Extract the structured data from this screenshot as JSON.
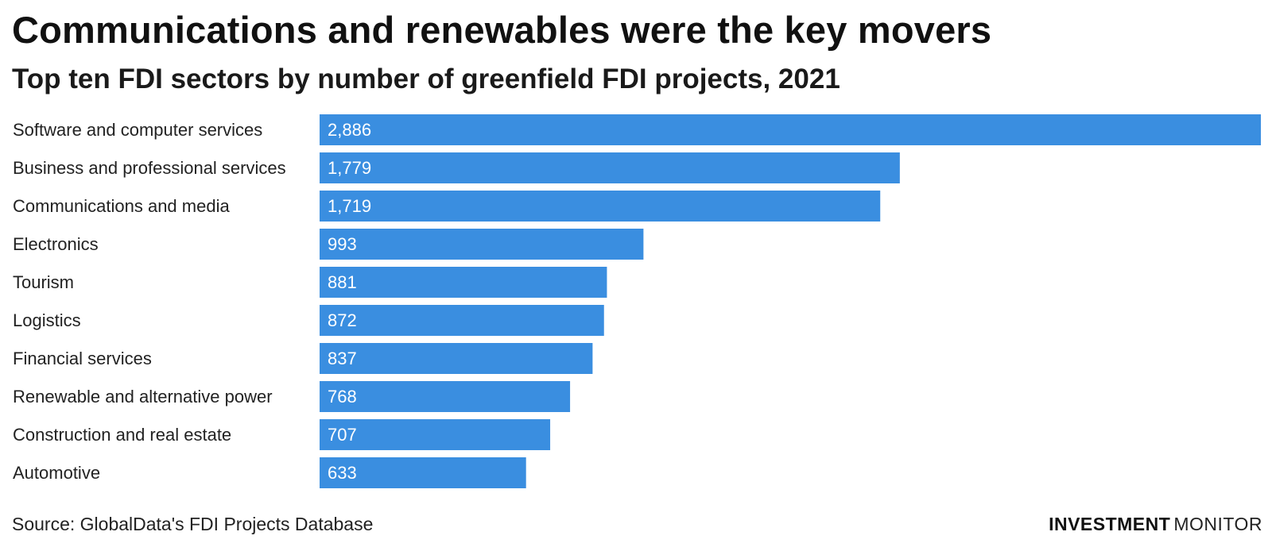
{
  "title": "Communications and renewables were the key movers",
  "subtitle": "Top ten FDI sectors by number of greenfield FDI projects, 2021",
  "source": "Source: GlobalData's FDI Projects Database",
  "brand": {
    "part1": "INVESTMENT",
    "part2": "MONITOR"
  },
  "colors": {
    "bar": "#3a8ee0"
  },
  "chart_data": {
    "type": "bar",
    "orientation": "horizontal",
    "categories": [
      "Software and computer services",
      "Business and professional services",
      "Communications and media",
      "Electronics",
      "Tourism",
      "Logistics",
      "Financial services",
      "Renewable and alternative power",
      "Construction and real estate",
      "Automotive"
    ],
    "values": [
      2886,
      1779,
      1719,
      993,
      881,
      872,
      837,
      768,
      707,
      633
    ],
    "value_labels": [
      "2,886",
      "1,779",
      "1,719",
      "993",
      "881",
      "872",
      "837",
      "768",
      "707",
      "633"
    ],
    "xlim": [
      0,
      2886
    ],
    "grid": false,
    "legend": "none"
  }
}
